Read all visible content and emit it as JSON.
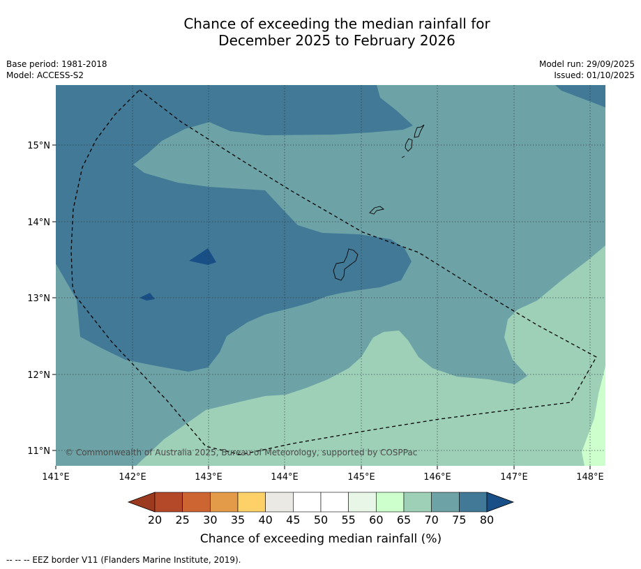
{
  "title_line1": "Chance of exceeding the median rainfall for",
  "title_line2": "December 2025 to February 2026",
  "meta": {
    "base_period": "Base period: 1981-2018",
    "model": "Model: ACCESS-S2",
    "model_run": "Model run: 29/09/2025",
    "issued": "Issued: 01/10/2025"
  },
  "map": {
    "lon_labels": [
      "141°E",
      "142°E",
      "143°E",
      "144°E",
      "145°E",
      "146°E",
      "147°E",
      "148°E"
    ],
    "lat_labels": [
      "15°N",
      "14°N",
      "13°N",
      "12°N",
      "11°N"
    ],
    "copyright": "© Commonwealth of Australia 2025, Bureau of Meteorology, supported by COSPPac"
  },
  "colorbar": {
    "ticks": [
      "20",
      "25",
      "30",
      "35",
      "40",
      "45",
      "50",
      "55",
      "60",
      "65",
      "70",
      "75",
      "80"
    ],
    "colors": {
      "below_20": "#9b3a1f",
      "b20_25": "#b4492a",
      "b25_30": "#cd6532",
      "b30_35": "#e39a49",
      "b35_40": "#fdd168",
      "b40_45": "#ebe9e4",
      "b45_50": "#ffffff",
      "b50_55": "#ffffff",
      "b55_60": "#e8f6e8",
      "b60_65": "#ccffcc",
      "b65_70": "#9ed0b7",
      "b70_75": "#6da3a6",
      "b75_80": "#417996",
      "above_80": "#184f87"
    },
    "label": "Chance of exceeding median rainfall (%)"
  },
  "footnote": "--  --  -- EEZ border V11 (Flanders Marine Institute, 2019)."
}
